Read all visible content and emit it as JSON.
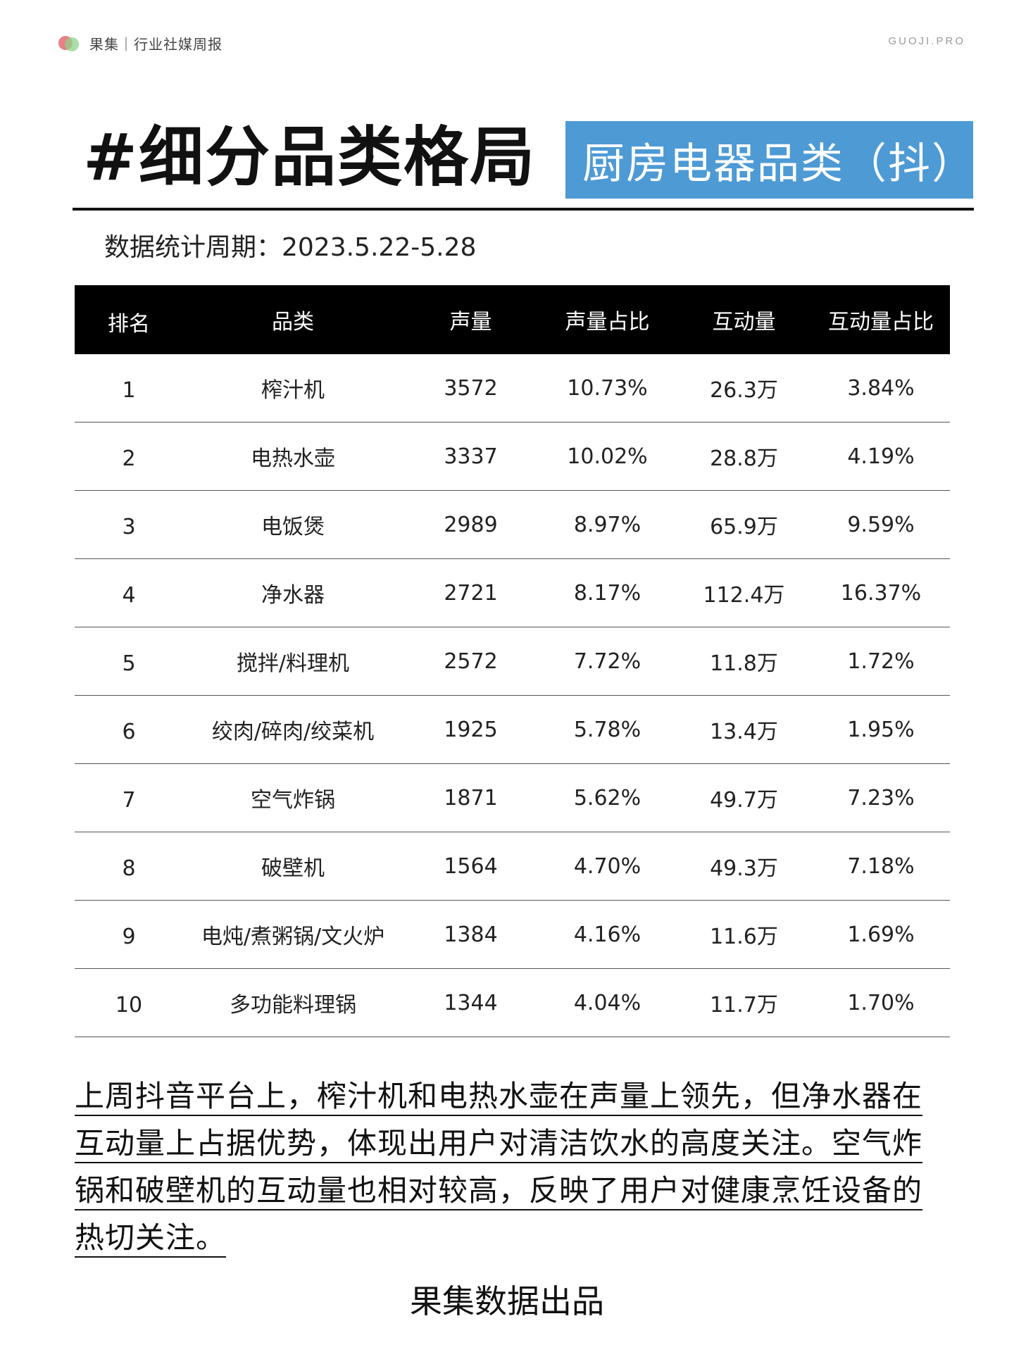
{
  "brand": {
    "name": "果集｜行业社媒周报",
    "site": "GUOJI.PRO"
  },
  "title": "#细分品类格局",
  "subtitle": "厨房电器品类（抖）",
  "period": "数据统计周期：2023.5.22-5.28",
  "table": {
    "headers": [
      "排名",
      "品类",
      "声量",
      "声量占比",
      "互动量",
      "互动量占比"
    ],
    "rows": [
      [
        "1",
        "榨汁机",
        "3572",
        "10.73%",
        "26.3万",
        "3.84%"
      ],
      [
        "2",
        "电热水壶",
        "3337",
        "10.02%",
        "28.8万",
        "4.19%"
      ],
      [
        "3",
        "电饭煲",
        "2989",
        "8.97%",
        "65.9万",
        "9.59%"
      ],
      [
        "4",
        "净水器",
        "2721",
        "8.17%",
        "112.4万",
        "16.37%"
      ],
      [
        "5",
        "搅拌/料理机",
        "2572",
        "7.72%",
        "11.8万",
        "1.72%"
      ],
      [
        "6",
        "绞肉/碎肉/绞菜机",
        "1925",
        "5.78%",
        "13.4万",
        "1.95%"
      ],
      [
        "7",
        "空气炸锅",
        "1871",
        "5.62%",
        "49.7万",
        "7.23%"
      ],
      [
        "8",
        "破壁机",
        "1564",
        "4.70%",
        "49.3万",
        "7.18%"
      ],
      [
        "9",
        "电炖/煮粥锅/文火炉",
        "1384",
        "4.16%",
        "11.6万",
        "1.69%"
      ],
      [
        "10",
        "多功能料理锅",
        "1344",
        "4.04%",
        "11.7万",
        "1.70%"
      ]
    ]
  },
  "summary": "上周抖音平台上，榨汁机和电热水壶在声量上领先，但净水器在互动量上占据优势，体现出用户对清洁饮水的高度关注。空气炸锅和破壁机的互动量也相对较高，反映了用户对健康烹饪设备的热切关注。",
  "footer": "果集数据出品",
  "colors": {
    "accent": "#4d9ad5",
    "header_bg": "#000000"
  }
}
